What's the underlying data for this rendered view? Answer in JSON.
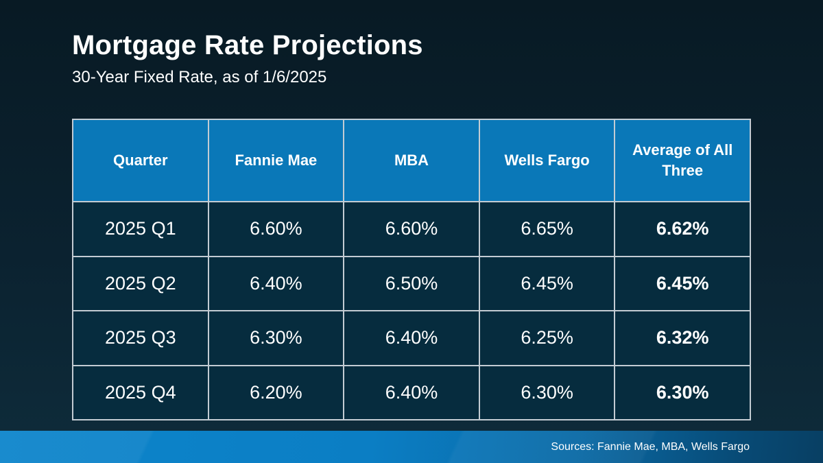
{
  "slide": {
    "title": "Mortgage Rate Projections",
    "subtitle": "30-Year Fixed Rate, as of 1/6/2025",
    "footer": {
      "sources": "Sources: Fannie Mae, MBA, Wells Fargo"
    }
  },
  "colors": {
    "background_top": "#081a24",
    "background_bottom": "#0e2c3b",
    "header_blue": "#0a78b8",
    "cell_navy": "#062c3e",
    "gridline": "#c3ccd3",
    "footer_bar_left": "#0d85cb",
    "footer_bar_right": "#083f63",
    "text": "#ffffff"
  },
  "chart_data": {
    "type": "table",
    "title": "Mortgage Rate Projections",
    "subtitle": "30-Year Fixed Rate, as of 1/6/2025",
    "columns": [
      "Quarter",
      "Fannie Mae",
      "MBA",
      "Wells Fargo",
      "Average of All Three"
    ],
    "rows": [
      [
        "2025 Q1",
        "6.60%",
        "6.60%",
        "6.65%",
        "6.62%"
      ],
      [
        "2025 Q2",
        "6.40%",
        "6.50%",
        "6.45%",
        "6.45%"
      ],
      [
        "2025 Q3",
        "6.30%",
        "6.40%",
        "6.25%",
        "6.32%"
      ],
      [
        "2025 Q4",
        "6.20%",
        "6.40%",
        "6.30%",
        "6.30%"
      ]
    ],
    "notes": "Average of All Three column rendered bold; header row on blue background",
    "sources_label": "Sources: Fannie Mae, MBA, Wells Fargo"
  }
}
